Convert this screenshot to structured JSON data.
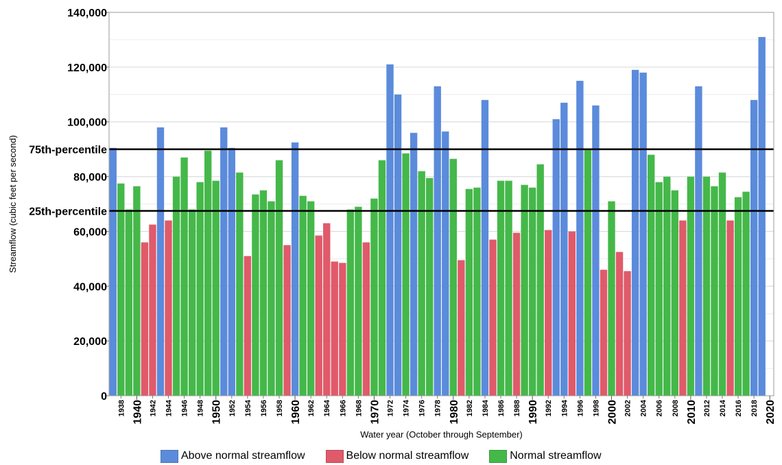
{
  "chart_data": {
    "type": "bar",
    "title": "",
    "xlabel": "Water year (October through September)",
    "ylabel": "Streamflow (cubic feet per second)",
    "ylim": [
      0,
      140000
    ],
    "y_ticks": [
      0,
      20000,
      40000,
      60000,
      80000,
      100000,
      120000,
      140000
    ],
    "y_tick_labels": [
      "0",
      "20,000",
      "40,000",
      "60,000",
      "80,000",
      "100,000",
      "120,000",
      "140,000"
    ],
    "x_major_labels": [
      "1940",
      "1950",
      "1960",
      "1970",
      "1980",
      "1990",
      "2000",
      "2010",
      "2020"
    ],
    "grid": true,
    "reference_lines": [
      {
        "name": "75th-percentile",
        "value": 90000
      },
      {
        "name": "25th-percentile",
        "value": 67500
      }
    ],
    "colors": {
      "above": "#5b8bdb",
      "below": "#e05a6a",
      "normal": "#45b84a"
    },
    "legend": [
      {
        "key": "above",
        "label": "Above normal streamflow"
      },
      {
        "key": "below",
        "label": "Below normal streamflow"
      },
      {
        "key": "normal",
        "label": "Normal streamflow"
      }
    ],
    "bars": [
      {
        "year": "1937",
        "value": 90500,
        "category": "above"
      },
      {
        "year": "1938",
        "value": 77500,
        "category": "normal"
      },
      {
        "year": "1939",
        "value": 68000,
        "category": "normal"
      },
      {
        "year": "1940",
        "value": 76500,
        "category": "normal"
      },
      {
        "year": "1941",
        "value": 56000,
        "category": "below"
      },
      {
        "year": "1942",
        "value": 62500,
        "category": "below"
      },
      {
        "year": "1943",
        "value": 98000,
        "category": "above"
      },
      {
        "year": "1944",
        "value": 64000,
        "category": "below"
      },
      {
        "year": "1945",
        "value": 80000,
        "category": "normal"
      },
      {
        "year": "1946",
        "value": 87000,
        "category": "normal"
      },
      {
        "year": "1947",
        "value": 68000,
        "category": "normal"
      },
      {
        "year": "1948",
        "value": 78000,
        "category": "normal"
      },
      {
        "year": "1949",
        "value": 89500,
        "category": "normal"
      },
      {
        "year": "1950",
        "value": 78500,
        "category": "normal"
      },
      {
        "year": "1951",
        "value": 98000,
        "category": "above"
      },
      {
        "year": "1952",
        "value": 90500,
        "category": "above"
      },
      {
        "year": "1953",
        "value": 81500,
        "category": "normal"
      },
      {
        "year": "1954",
        "value": 51000,
        "category": "below"
      },
      {
        "year": "1955",
        "value": 73500,
        "category": "normal"
      },
      {
        "year": "1956",
        "value": 75000,
        "category": "normal"
      },
      {
        "year": "1957",
        "value": 71000,
        "category": "normal"
      },
      {
        "year": "1958",
        "value": 86000,
        "category": "normal"
      },
      {
        "year": "1959",
        "value": 55000,
        "category": "below"
      },
      {
        "year": "1960",
        "value": 92500,
        "category": "above"
      },
      {
        "year": "1961",
        "value": 73000,
        "category": "normal"
      },
      {
        "year": "1962",
        "value": 71000,
        "category": "normal"
      },
      {
        "year": "1963",
        "value": 58500,
        "category": "below"
      },
      {
        "year": "1964",
        "value": 63000,
        "category": "below"
      },
      {
        "year": "1965",
        "value": 49000,
        "category": "below"
      },
      {
        "year": "1966",
        "value": 48500,
        "category": "below"
      },
      {
        "year": "1967",
        "value": 68000,
        "category": "normal"
      },
      {
        "year": "1968",
        "value": 69000,
        "category": "normal"
      },
      {
        "year": "1969",
        "value": 56000,
        "category": "below"
      },
      {
        "year": "1970",
        "value": 72000,
        "category": "normal"
      },
      {
        "year": "1971",
        "value": 86000,
        "category": "normal"
      },
      {
        "year": "1972",
        "value": 121000,
        "category": "above"
      },
      {
        "year": "1973",
        "value": 110000,
        "category": "above"
      },
      {
        "year": "1974",
        "value": 88500,
        "category": "normal"
      },
      {
        "year": "1975",
        "value": 96000,
        "category": "above"
      },
      {
        "year": "1976",
        "value": 82000,
        "category": "normal"
      },
      {
        "year": "1977",
        "value": 79500,
        "category": "normal"
      },
      {
        "year": "1978",
        "value": 113000,
        "category": "above"
      },
      {
        "year": "1979",
        "value": 96500,
        "category": "above"
      },
      {
        "year": "1980",
        "value": 86500,
        "category": "normal"
      },
      {
        "year": "1981",
        "value": 49500,
        "category": "below"
      },
      {
        "year": "1982",
        "value": 75500,
        "category": "normal"
      },
      {
        "year": "1983",
        "value": 76000,
        "category": "normal"
      },
      {
        "year": "1984",
        "value": 108000,
        "category": "above"
      },
      {
        "year": "1985",
        "value": 57000,
        "category": "below"
      },
      {
        "year": "1986",
        "value": 78500,
        "category": "normal"
      },
      {
        "year": "1987",
        "value": 78500,
        "category": "normal"
      },
      {
        "year": "1988",
        "value": 59500,
        "category": "below"
      },
      {
        "year": "1989",
        "value": 77000,
        "category": "normal"
      },
      {
        "year": "1990",
        "value": 76000,
        "category": "normal"
      },
      {
        "year": "1991",
        "value": 84500,
        "category": "normal"
      },
      {
        "year": "1992",
        "value": 60500,
        "category": "below"
      },
      {
        "year": "1993",
        "value": 101000,
        "category": "above"
      },
      {
        "year": "1994",
        "value": 107000,
        "category": "above"
      },
      {
        "year": "1995",
        "value": 60000,
        "category": "below"
      },
      {
        "year": "1996",
        "value": 115000,
        "category": "above"
      },
      {
        "year": "1997",
        "value": 90000,
        "category": "normal"
      },
      {
        "year": "1998",
        "value": 106000,
        "category": "above"
      },
      {
        "year": "1999",
        "value": 46000,
        "category": "below"
      },
      {
        "year": "2000",
        "value": 71000,
        "category": "normal"
      },
      {
        "year": "2001",
        "value": 52500,
        "category": "below"
      },
      {
        "year": "2002",
        "value": 45500,
        "category": "below"
      },
      {
        "year": "2003",
        "value": 119000,
        "category": "above"
      },
      {
        "year": "2004",
        "value": 118000,
        "category": "above"
      },
      {
        "year": "2005",
        "value": 88000,
        "category": "normal"
      },
      {
        "year": "2006",
        "value": 78000,
        "category": "normal"
      },
      {
        "year": "2007",
        "value": 80000,
        "category": "normal"
      },
      {
        "year": "2008",
        "value": 75000,
        "category": "normal"
      },
      {
        "year": "2009",
        "value": 64000,
        "category": "below"
      },
      {
        "year": "2010",
        "value": 80000,
        "category": "normal"
      },
      {
        "year": "2011",
        "value": 113000,
        "category": "above"
      },
      {
        "year": "2012",
        "value": 80000,
        "category": "normal"
      },
      {
        "year": "2013",
        "value": 76500,
        "category": "normal"
      },
      {
        "year": "2014",
        "value": 81500,
        "category": "normal"
      },
      {
        "year": "2015",
        "value": 64000,
        "category": "below"
      },
      {
        "year": "2016",
        "value": 72500,
        "category": "normal"
      },
      {
        "year": "2017",
        "value": 74500,
        "category": "normal"
      },
      {
        "year": "2018",
        "value": 108000,
        "category": "above"
      },
      {
        "year": "2019",
        "value": 131000,
        "category": "above"
      }
    ]
  }
}
